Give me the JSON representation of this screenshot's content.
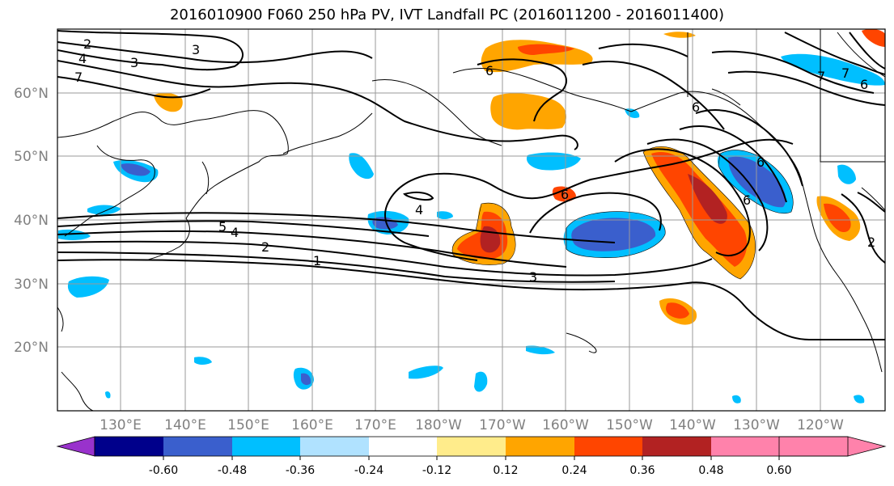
{
  "title": "2016010900 F060 250 hPa PV, IVT Landfall PC (2016011200 - 2016011400)",
  "map": {
    "lon_labels": [
      "130°E",
      "140°E",
      "150°E",
      "160°E",
      "170°E",
      "180°W",
      "170°W",
      "160°W",
      "150°W",
      "140°W",
      "130°W",
      "120°W"
    ],
    "lat_labels": [
      "20°N",
      "30°N",
      "40°N",
      "50°N",
      "60°N"
    ],
    "contour_labels": [
      "2",
      "3",
      "4",
      "7",
      "3",
      "6",
      "6",
      "4",
      "6",
      "5",
      "4",
      "2",
      "1",
      "3",
      "6",
      "7",
      "6",
      "7",
      "6",
      "2"
    ]
  },
  "colorbar": {
    "colors": [
      "#9932CC",
      "#00008B",
      "#3A5FCD",
      "#00BFFF",
      "#B0E2FF",
      "#FFFFFF",
      "#FFEC8B",
      "#FFA500",
      "#FF4500",
      "#B22222",
      "#FF82AB"
    ],
    "tick_labels": [
      "-0.60",
      "-0.48",
      "-0.36",
      "-0.24",
      "-0.12",
      "0.12",
      "0.24",
      "0.36",
      "0.48",
      "0.60"
    ]
  }
}
